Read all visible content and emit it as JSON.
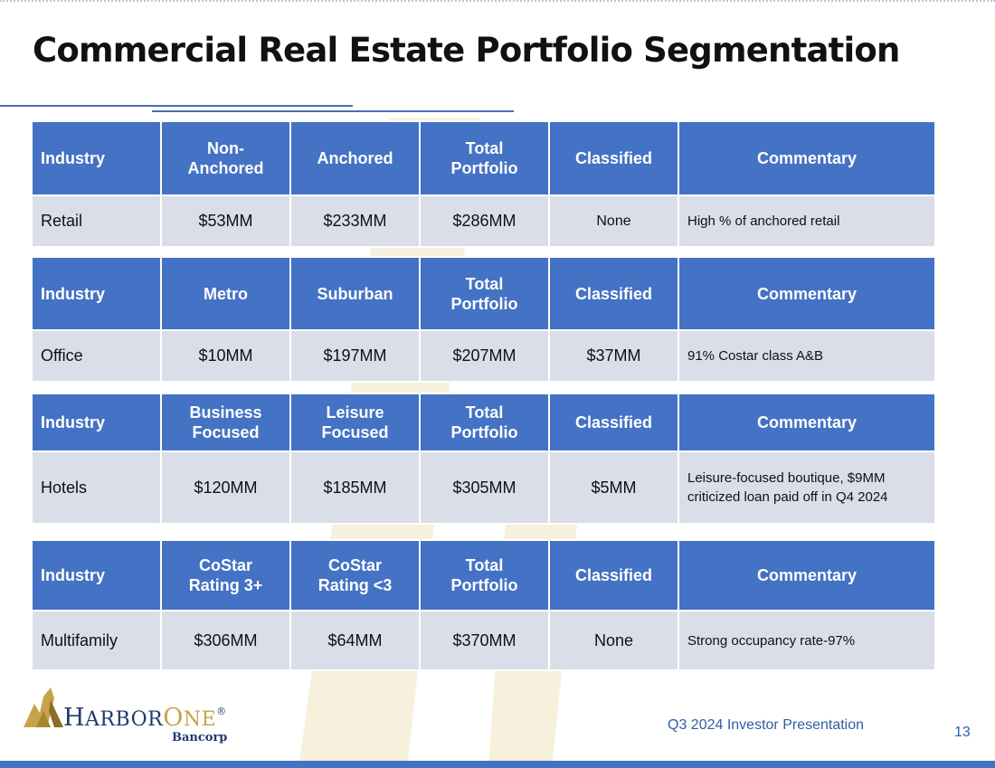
{
  "slide": {
    "title": "Commercial Real Estate Portfolio Segmentation",
    "footer": "Q3 2024 Investor Presentation",
    "page_number": "13"
  },
  "logo": {
    "name_part1": "H",
    "name_part2": "ARBOR",
    "name_part3": "O",
    "name_part4": "NE",
    "registered": "®",
    "sub": "Bancorp"
  },
  "colors": {
    "header_bg": "#4472c4",
    "row_bg": "#d9dee8",
    "title": "#111111",
    "footer": "#2e5ea8",
    "brand_navy": "#1f3a6e",
    "brand_gold": "#c8a24a"
  },
  "tables": [
    {
      "headers": [
        "Industry",
        "Non-\nAnchored",
        "Anchored",
        "Total\nPortfolio",
        "Classified",
        "Commentary"
      ],
      "row": [
        "Retail",
        "$53MM",
        "$233MM",
        "$286MM",
        "None",
        "High % of anchored retail"
      ]
    },
    {
      "headers": [
        "Industry",
        "Metro",
        "Suburban",
        "Total\nPortfolio",
        "Classified",
        "Commentary"
      ],
      "row": [
        "Office",
        "$10MM",
        "$197MM",
        "$207MM",
        "$37MM",
        "91% Costar class A&B"
      ]
    },
    {
      "headers": [
        "Industry",
        "Business\nFocused",
        "Leisure\nFocused",
        "Total\nPortfolio",
        "Classified",
        "Commentary"
      ],
      "row": [
        "Hotels",
        "$120MM",
        "$185MM",
        "$305MM",
        "$5MM",
        "Leisure-focused boutique, $9MM\ncriticized loan paid off in Q4 2024"
      ]
    },
    {
      "headers": [
        "Industry",
        "CoStar\nRating 3+",
        "CoStar\nRating <3",
        "Total\nPortfolio",
        "Classified",
        "Commentary"
      ],
      "row": [
        "Multifamily",
        "$306MM",
        "$64MM",
        "$370MM",
        "None",
        "Strong occupancy rate-97%"
      ]
    }
  ]
}
